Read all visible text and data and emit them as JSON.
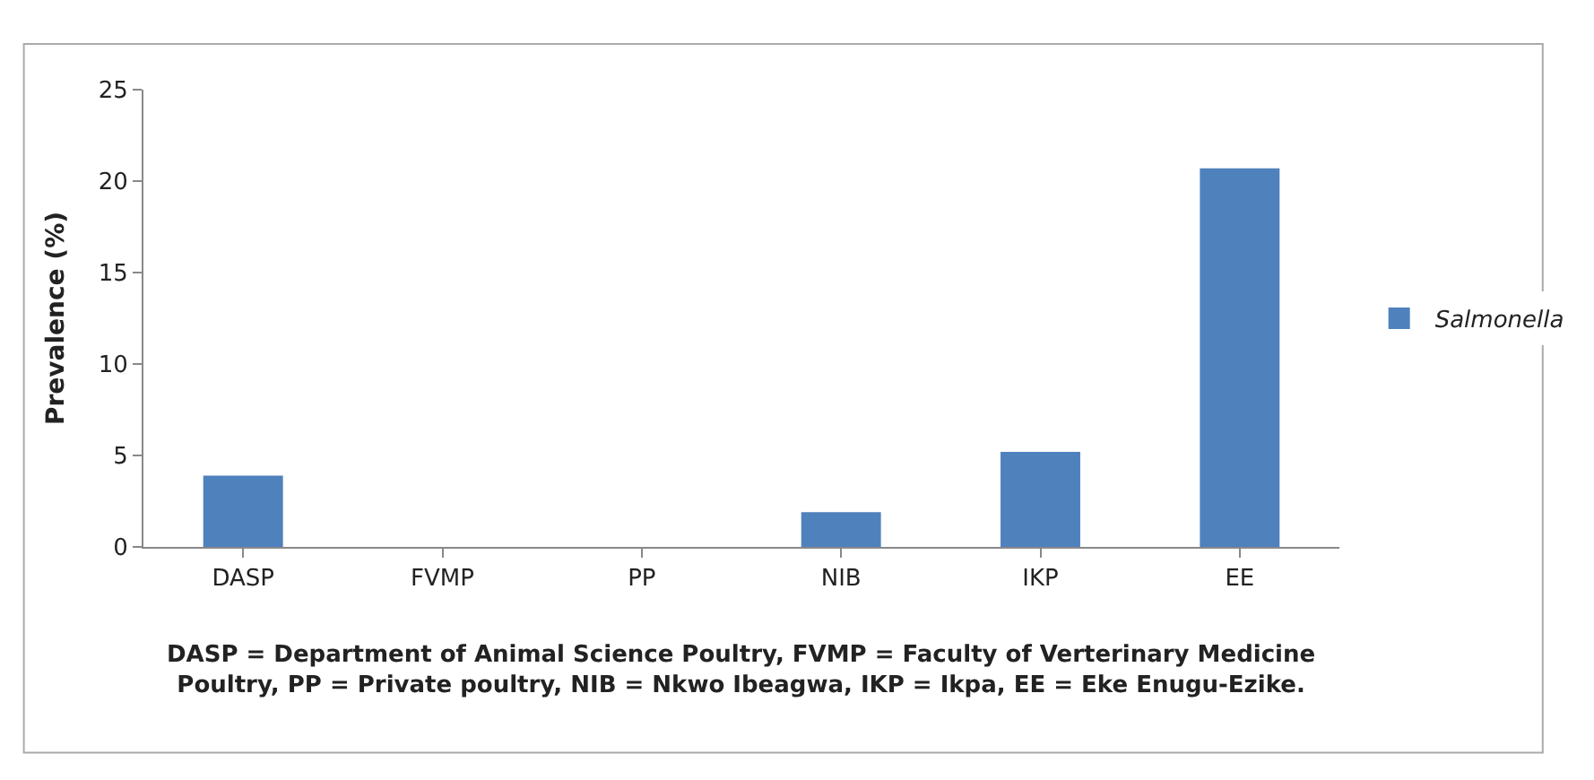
{
  "chart_data": {
    "type": "bar",
    "ylabel": "Prevalence (%)",
    "categories": [
      "DASP",
      "FVMP",
      "PP",
      "NIB",
      "IKP",
      "EE"
    ],
    "series": [
      {
        "name": "Salmonella",
        "color": "#4f81bd",
        "values": [
          3.9,
          0,
          0,
          1.9,
          5.2,
          20.7
        ]
      }
    ],
    "ylim": [
      0,
      25
    ],
    "yticks": [
      0,
      5,
      10,
      15,
      20,
      25
    ],
    "legend": "right",
    "annotations": [
      "DASP = Department of Animal Science Poultry, FVMP = Faculty of Verterinary Medicine\nPoultry, PP = Private poultry, NIB = Nkwo Ibeagwa, IKP = Ikpa, EE = Eke Enugu-Ezike."
    ]
  }
}
